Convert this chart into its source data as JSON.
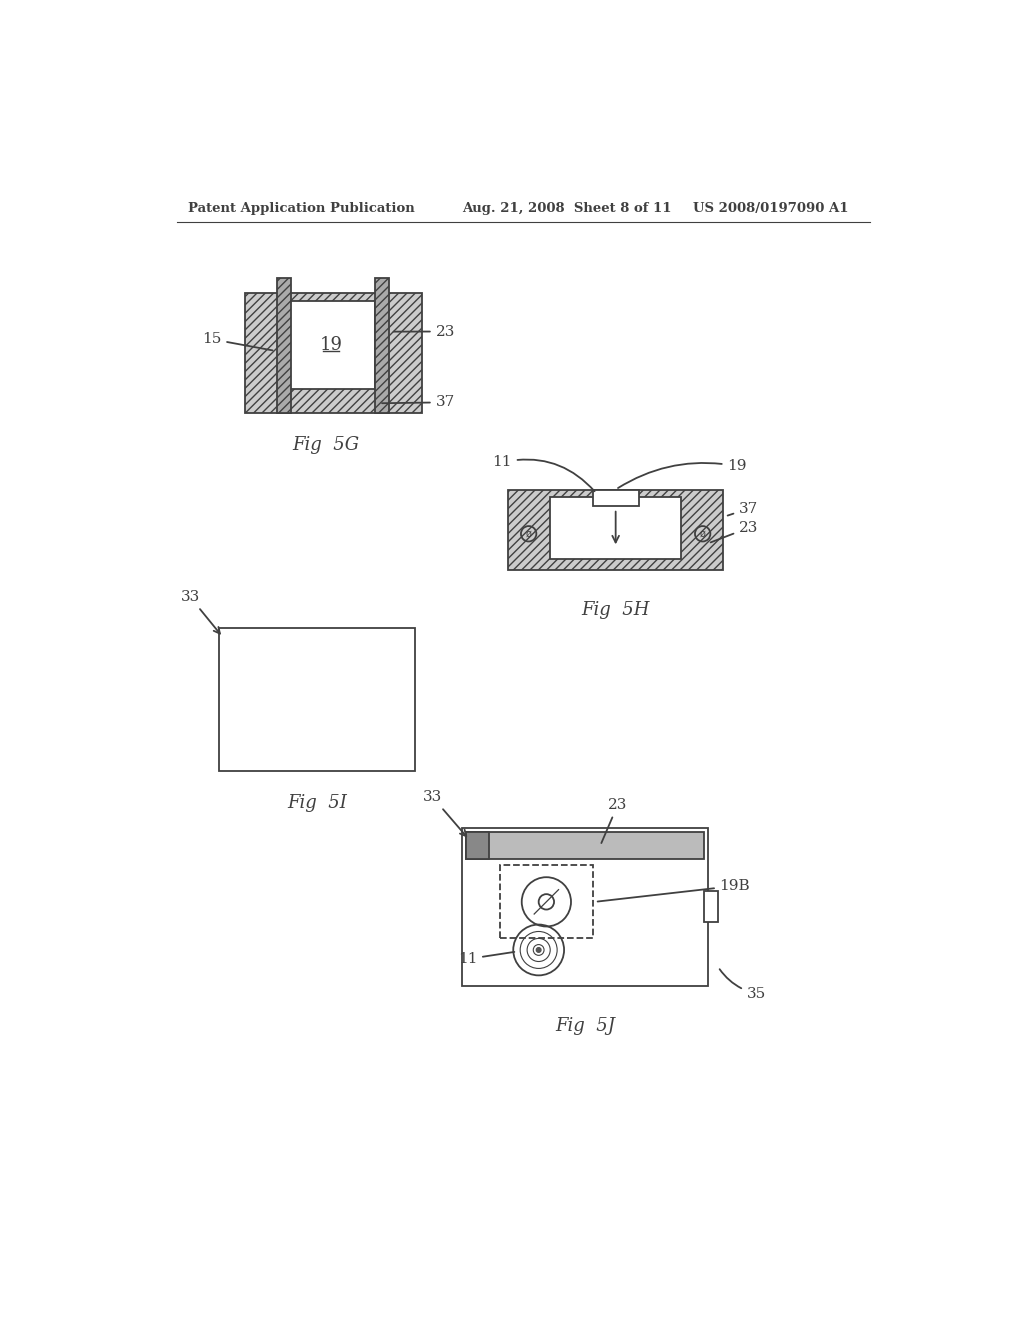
{
  "bg_color": "#ffffff",
  "header_left": "Patent Application Publication",
  "header_mid": "Aug. 21, 2008  Sheet 8 of 11",
  "header_right": "US 2008/0197090 A1",
  "fig5g_label": "Fig  5G",
  "fig5h_label": "Fig  5H",
  "fig5i_label": "Fig  5I",
  "fig5j_label": "Fig  5J",
  "line_color": "#404040",
  "lw": 1.3
}
